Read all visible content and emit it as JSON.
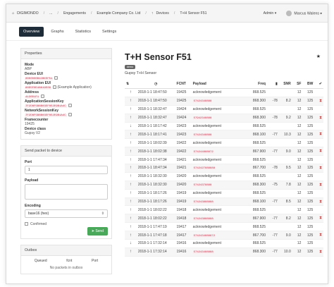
{
  "topbar": {
    "crumbs": [
      "DIGIMONDO",
      "...",
      "Engagements",
      "Example Company Co. Ltd",
      "Devices",
      "T+H Sensor F51"
    ],
    "admin": "Admin",
    "user": "Marcus Walens"
  },
  "tabs": [
    "Overview",
    "Graphs",
    "Statistics",
    "Settings"
  ],
  "properties": {
    "header": "Properties",
    "mode_label": "Mode",
    "mode_value": "ABP",
    "eui_label": "Device EUI",
    "eui_value": "0000000B1CBEEF51",
    "app_label": "Application EUI",
    "app_value": "60D5F0E4A619E09",
    "app_note": "(Example Application)",
    "addr_label": "Address",
    "addr_value": "4130D1F1",
    "ask_label": "ApplicationSessionKey",
    "ask_value": "7F2D8F5B8B03EF0E2E9B1A4C",
    "nsk_label": "NetworkSessionKey",
    "nsk_value": "7F2D8F5B8B03EF0E2E9B1A4C",
    "fc_label": "Framecounter",
    "fc_value": "19425",
    "dc_label": "Device class",
    "dc_value": "Gupsy V2"
  },
  "send": {
    "header": "Send packet to device",
    "port_label": "Port",
    "port_value": "1",
    "payload_label": "Payload",
    "enc_label": "Encoding",
    "enc_value": "base16 (hex)",
    "confirmed_label": "Confirmed",
    "send_label": "Send"
  },
  "outbox": {
    "header": "Outbox",
    "cols": [
      "Queued",
      "fcnt",
      "Port"
    ],
    "empty": "No packets in outbox"
  },
  "device": {
    "title": "T+H Sensor F51",
    "badge": "demo",
    "subtitle": "Gupsy T+H Sensor"
  },
  "table": {
    "headers": [
      "",
      "",
      "FCNT",
      "Payload",
      "Freq",
      "",
      "SNR",
      "SF",
      "BW",
      ""
    ],
    "rows": [
      {
        "dir": "up",
        "time": "2018-1-1 18:47:50",
        "fcnt": "19425",
        "payload": "acknowledgement",
        "freq": "868.525",
        "rssi": "",
        "snr": "",
        "sf": "12",
        "bw": "125",
        "hg": false
      },
      {
        "dir": "up",
        "time": "2018-1-1 18:47:50",
        "fcnt": "19425",
        "payload": "57424348888",
        "freq": "868.300",
        "rssi": "-78",
        "snr": "8.2",
        "sf": "12",
        "bw": "125",
        "hg": true
      },
      {
        "dir": "up",
        "time": "2018-1-1 18:32:47",
        "fcnt": "19424",
        "payload": "acknowledgement",
        "freq": "868.525",
        "rssi": "",
        "snr": "",
        "sf": "12",
        "bw": "125",
        "hg": false
      },
      {
        "dir": "up",
        "time": "2018-1-1 18:32:47",
        "fcnt": "19424",
        "payload": "57942348888",
        "freq": "868.300",
        "rssi": "-78",
        "snr": "9.2",
        "sf": "12",
        "bw": "125",
        "hg": true
      },
      {
        "dir": "down",
        "time": "2018-1-1 18:17:42",
        "fcnt": "19423",
        "payload": "acknowledgement",
        "freq": "868.525",
        "rssi": "",
        "snr": "",
        "sf": "12",
        "bw": "125",
        "hg": false
      },
      {
        "dir": "up",
        "time": "2018-1-1 18:17:41",
        "fcnt": "19423",
        "payload": "57424348888",
        "freq": "868.100",
        "rssi": "-77",
        "snr": "10.3",
        "sf": "12",
        "bw": "125",
        "hg": true
      },
      {
        "dir": "up",
        "time": "2018-1-1 18:02:39",
        "fcnt": "19422",
        "payload": "acknowledgement",
        "freq": "868.525",
        "rssi": "",
        "snr": "",
        "sf": "12",
        "bw": "125",
        "hg": false
      },
      {
        "dir": "up",
        "time": "2018-1-1 18:02:38",
        "fcnt": "19422",
        "payload": "574244888872",
        "freq": "867.900",
        "rssi": "-77",
        "snr": "9.0",
        "sf": "12",
        "bw": "125",
        "hg": true
      },
      {
        "dir": "up",
        "time": "2018-1-1 17:47:34",
        "fcnt": "19421",
        "payload": "acknowledgement",
        "freq": "868.525",
        "rssi": "",
        "snr": "",
        "sf": "12",
        "bw": "125",
        "hg": false
      },
      {
        "dir": "up",
        "time": "2018-1-1 18:47:34",
        "fcnt": "19421",
        "payload": "5742427888888",
        "freq": "867.700",
        "rssi": "-78",
        "snr": "9.5",
        "sf": "12",
        "bw": "125",
        "hg": true
      },
      {
        "dir": "up",
        "time": "2018-1-1 18:32:30",
        "fcnt": "19420",
        "payload": "acknowledgement",
        "freq": "868.525",
        "rssi": "",
        "snr": "",
        "sf": "12",
        "bw": "125",
        "hg": false
      },
      {
        "dir": "up",
        "time": "2018-1-1 18:32:30",
        "fcnt": "19420",
        "payload": "57424378888",
        "freq": "868.300",
        "rssi": "-75",
        "snr": "7.8",
        "sf": "12",
        "bw": "125",
        "hg": true
      },
      {
        "dir": "up",
        "time": "2018-1-1 18:17:26",
        "fcnt": "19419",
        "payload": "acknowledgement",
        "freq": "868.525",
        "rssi": "",
        "snr": "",
        "sf": "12",
        "bw": "125",
        "hg": false
      },
      {
        "dir": "up",
        "time": "2018-1-1 18:17:26",
        "fcnt": "19419",
        "payload": "574243888888",
        "freq": "868.100",
        "rssi": "-77",
        "snr": "8.5",
        "sf": "12",
        "bw": "125",
        "hg": true
      },
      {
        "dir": "up",
        "time": "2018-1-1 18:02:22",
        "fcnt": "19418",
        "payload": "acknowledgement",
        "freq": "868.525",
        "rssi": "",
        "snr": "",
        "sf": "12",
        "bw": "125",
        "hg": false
      },
      {
        "dir": "up",
        "time": "2018-1-1 18:02:22",
        "fcnt": "19418",
        "payload": "574243888888",
        "freq": "867.900",
        "rssi": "-77",
        "snr": "8.2",
        "sf": "12",
        "bw": "125",
        "hg": true
      },
      {
        "dir": "up",
        "time": "2018-1-1 17:47:19",
        "fcnt": "19417",
        "payload": "acknowledgement",
        "freq": "868.525",
        "rssi": "",
        "snr": "",
        "sf": "12",
        "bw": "125",
        "hg": false
      },
      {
        "dir": "up",
        "time": "2018-1-1 17:47:18",
        "fcnt": "19417",
        "payload": "5742434888872",
        "freq": "867.700",
        "rssi": "-77",
        "snr": "9.0",
        "sf": "12",
        "bw": "125",
        "hg": true
      },
      {
        "dir": "down",
        "time": "2018-1-1 17:32:14",
        "fcnt": "19416",
        "payload": "acknowledgement",
        "freq": "868.525",
        "rssi": "",
        "snr": "",
        "sf": "12",
        "bw": "125",
        "hg": false
      },
      {
        "dir": "up",
        "time": "2018-1-1 17:32:14",
        "fcnt": "19416",
        "payload": "574243488888",
        "freq": "868.300",
        "rssi": "-77",
        "snr": "10.0",
        "sf": "12",
        "bw": "125",
        "hg": true
      }
    ]
  }
}
